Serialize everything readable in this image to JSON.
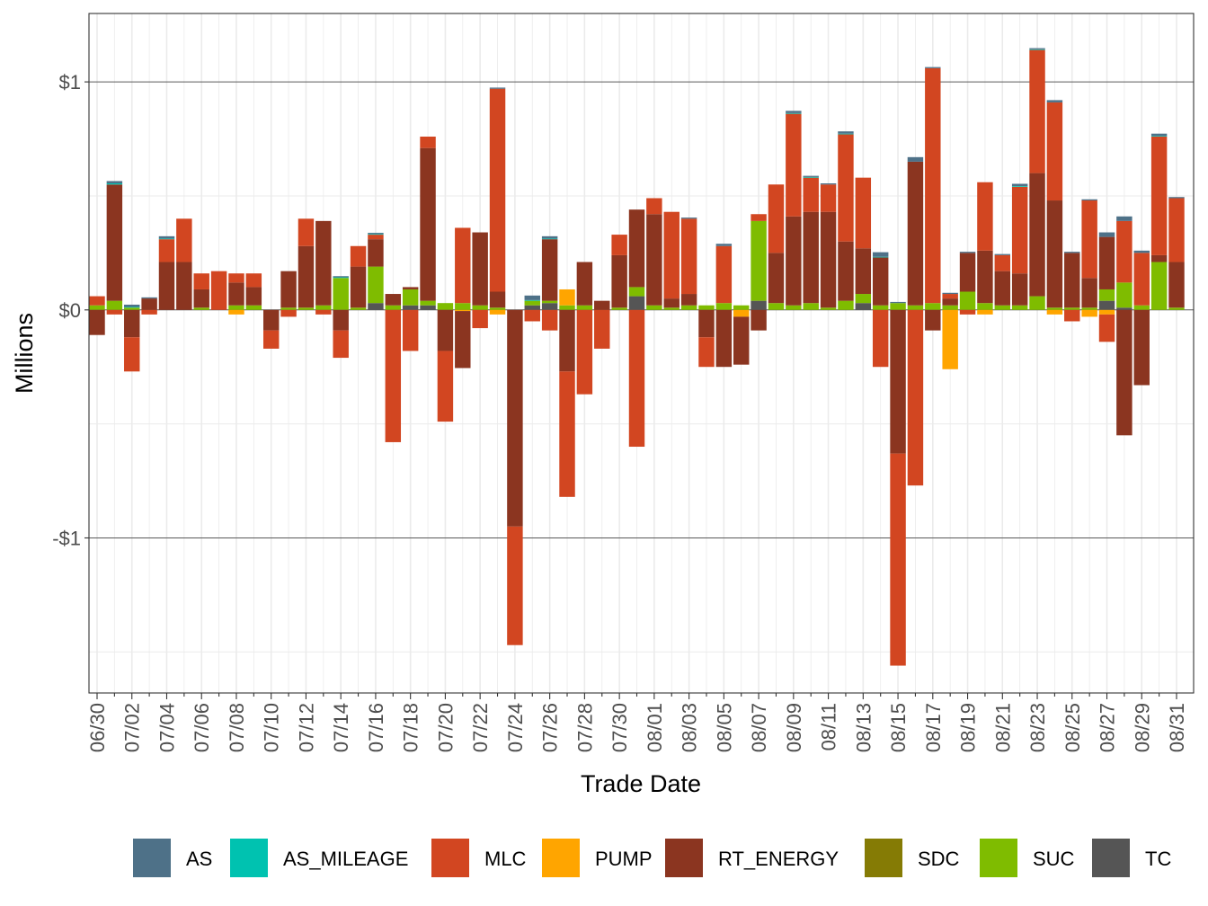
{
  "chart_data": {
    "type": "bar",
    "stacked": true,
    "xlabel": "Trade Date",
    "ylabel": "Millions",
    "ylim": [
      -1.68,
      1.3
    ],
    "yticks": [
      {
        "value": -1,
        "label": "-$1"
      },
      {
        "value": 0,
        "label": "$0"
      },
      {
        "value": 1,
        "label": "$1"
      }
    ],
    "grid": true,
    "legend_position": "bottom",
    "categories": [
      "06/30",
      "07/01",
      "07/02",
      "07/03",
      "07/04",
      "07/05",
      "07/06",
      "07/07",
      "07/08",
      "07/09",
      "07/10",
      "07/11",
      "07/12",
      "07/13",
      "07/14",
      "07/15",
      "07/16",
      "07/17",
      "07/18",
      "07/19",
      "07/20",
      "07/21",
      "07/22",
      "07/23",
      "07/24",
      "07/25",
      "07/26",
      "07/27",
      "07/28",
      "07/29",
      "07/30",
      "07/31",
      "08/01",
      "08/02",
      "08/03",
      "08/04",
      "08/05",
      "08/06",
      "08/07",
      "08/08",
      "08/09",
      "08/10",
      "08/11",
      "08/12",
      "08/13",
      "08/14",
      "08/15",
      "08/16",
      "08/17",
      "08/18",
      "08/19",
      "08/20",
      "08/21",
      "08/22",
      "08/23",
      "08/24",
      "08/25",
      "08/26",
      "08/27",
      "08/28",
      "08/29",
      "08/30",
      "08/31"
    ],
    "x_tick_labels": [
      "06/30",
      "07/02",
      "07/04",
      "07/06",
      "07/08",
      "07/10",
      "07/12",
      "07/14",
      "07/16",
      "07/18",
      "07/20",
      "07/22",
      "07/24",
      "07/26",
      "07/28",
      "07/30",
      "08/01",
      "08/03",
      "08/05",
      "08/07",
      "08/09",
      "08/11",
      "08/13",
      "08/15",
      "08/17",
      "08/19",
      "08/21",
      "08/23",
      "08/25",
      "08/27",
      "08/29",
      "08/31"
    ],
    "series": [
      {
        "name": "TC",
        "color": "#555555",
        "values": [
          0,
          0,
          0,
          0,
          0,
          0,
          0,
          0,
          0,
          0,
          0,
          0,
          0,
          0,
          0,
          0,
          0.03,
          0,
          0.02,
          0.02,
          0,
          0,
          0,
          0,
          0,
          0.02,
          0.03,
          0,
          0,
          0,
          0,
          0.06,
          0,
          0,
          0,
          0,
          0,
          0,
          0.04,
          0,
          0,
          0,
          0,
          0,
          0.03,
          0,
          0,
          0,
          0,
          0,
          0,
          0,
          0,
          0,
          0,
          0,
          0,
          0,
          0.04,
          0.01,
          0,
          0,
          0
        ]
      },
      {
        "name": "SDC",
        "color": "#857B05",
        "values": [
          0,
          0,
          0,
          0,
          0,
          0,
          0,
          0,
          0,
          0,
          0,
          0,
          0,
          0,
          0,
          0,
          0,
          0,
          0,
          0,
          0,
          0,
          0,
          0,
          0,
          0,
          0,
          0,
          0,
          0,
          0,
          0,
          0,
          0,
          0,
          0,
          0,
          0,
          0,
          0,
          0,
          0,
          0,
          0,
          0,
          0,
          0,
          0,
          0,
          0,
          0,
          0,
          0,
          0,
          0,
          0,
          0,
          0,
          0,
          0,
          0,
          0,
          0
        ]
      },
      {
        "name": "SUC",
        "color": "#7FBC00",
        "values": [
          0.02,
          0.04,
          0.01,
          0,
          0,
          0,
          0.01,
          0,
          0.02,
          0.02,
          0,
          0.01,
          0.01,
          0.02,
          0.14,
          0.01,
          0.16,
          0.02,
          0.07,
          0.02,
          0.03,
          0.03,
          0.02,
          0.01,
          0,
          0.02,
          0.01,
          0.02,
          0.02,
          0,
          0.01,
          0.04,
          0.02,
          0.01,
          0.02,
          0.02,
          0.03,
          0.02,
          0.35,
          0.03,
          0.02,
          0.03,
          0.01,
          0.04,
          0.04,
          0.02,
          0.03,
          0.02,
          0.03,
          0.02,
          0.08,
          0.03,
          0.02,
          0.02,
          0.06,
          0.01,
          0.01,
          0.01,
          0.05,
          0.11,
          0.02,
          0.21,
          0.01
        ]
      },
      {
        "name": "PUMP",
        "color": "#FFA500",
        "values": [
          0,
          0,
          0,
          0,
          0,
          0,
          0,
          0,
          -0.02,
          0,
          0,
          0,
          0,
          0,
          0,
          0,
          0,
          0,
          0,
          0,
          0,
          -0.005,
          0,
          -0.02,
          0,
          0,
          0,
          0.07,
          0,
          0,
          0,
          0,
          0,
          0,
          0,
          0,
          0,
          -0.03,
          0,
          0,
          0,
          0,
          0,
          0,
          0,
          0,
          0,
          0,
          0,
          -0.26,
          0,
          -0.02,
          0,
          0,
          0,
          -0.02,
          0,
          -0.03,
          -0.02,
          0,
          0,
          0,
          0
        ]
      },
      {
        "name": "RT_ENERGY",
        "color": "#8B3520",
        "values": [
          -0.11,
          0.51,
          -0.12,
          0.05,
          0.21,
          0.21,
          0.08,
          0,
          0.1,
          0.08,
          -0.09,
          0.16,
          0.27,
          0.37,
          -0.09,
          0.18,
          0.12,
          0.05,
          0.01,
          0.67,
          -0.18,
          -0.25,
          0.32,
          0.07,
          -0.95,
          0,
          0.27,
          -0.27,
          0.19,
          0.04,
          0.23,
          0.34,
          0.4,
          0.04,
          0.05,
          -0.12,
          -0.25,
          -0.21,
          -0.09,
          0.22,
          0.39,
          0.4,
          0.42,
          0.26,
          0.2,
          0.21,
          -0.63,
          0.63,
          -0.09,
          0.03,
          0.17,
          0.23,
          0.15,
          0.14,
          0.54,
          0.47,
          0.24,
          0.13,
          0.23,
          -0.55,
          -0.33,
          0.03,
          0.2
        ]
      },
      {
        "name": "MLC",
        "color": "#D24621",
        "values": [
          0.04,
          -0.02,
          -0.15,
          -0.02,
          0.1,
          0.19,
          0.07,
          0.17,
          0.04,
          0.06,
          -0.08,
          -0.03,
          0.12,
          -0.02,
          -0.12,
          0.09,
          0.02,
          -0.58,
          -0.18,
          0.05,
          -0.31,
          0.33,
          -0.08,
          0.89,
          -0.52,
          -0.05,
          -0.09,
          -0.55,
          -0.37,
          -0.17,
          0.09,
          -0.6,
          0.07,
          0.38,
          0.33,
          -0.13,
          0.25,
          0,
          0.03,
          0.3,
          0.45,
          0.15,
          0.12,
          0.47,
          0.31,
          -0.25,
          -0.93,
          -0.77,
          1.03,
          0.02,
          -0.02,
          0.3,
          0.07,
          0.38,
          0.54,
          0.43,
          -0.05,
          0.34,
          -0.12,
          0.27,
          0.23,
          0.52,
          0.28
        ]
      },
      {
        "name": "AS_MILEAGE",
        "color": "#00C2B0",
        "values": [
          0,
          0.005,
          0.003,
          0,
          0.003,
          0,
          0,
          0,
          0,
          0,
          0,
          0,
          0,
          0,
          0.003,
          0,
          0.003,
          0,
          0,
          0,
          0,
          0,
          0,
          0,
          0,
          0.003,
          0.003,
          0,
          0,
          0,
          0,
          0,
          0,
          0,
          0,
          0,
          0,
          0,
          0,
          0,
          0.003,
          0.003,
          0,
          0.003,
          0,
          0.003,
          0,
          0,
          0,
          0,
          0,
          0,
          0,
          0.003,
          0.003,
          0,
          0,
          0,
          0,
          0,
          0,
          0.003,
          0
        ]
      },
      {
        "name": "AS",
        "color": "#4E7188",
        "values": [
          0,
          0.01,
          0.01,
          0.005,
          0.01,
          0,
          0,
          0,
          0,
          0,
          0,
          0,
          0,
          0,
          0.005,
          0,
          0.005,
          0,
          0,
          0,
          0,
          0,
          0,
          0.005,
          0,
          0.02,
          0.01,
          0,
          0,
          0,
          0,
          0,
          0,
          0,
          0.005,
          0,
          0.01,
          0,
          0,
          0,
          0.01,
          0.005,
          0.005,
          0.01,
          0,
          0.02,
          0.005,
          0.02,
          0.005,
          0.005,
          0.005,
          0,
          0.005,
          0.01,
          0.005,
          0.01,
          0.005,
          0.005,
          0.02,
          0.02,
          0.01,
          0.01,
          0.005
        ]
      }
    ]
  },
  "legend": [
    {
      "label": "AS",
      "color": "#4E7188"
    },
    {
      "label": "AS_MILEAGE",
      "color": "#00C2B0"
    },
    {
      "label": "MLC",
      "color": "#D24621"
    },
    {
      "label": "PUMP",
      "color": "#FFA500"
    },
    {
      "label": "RT_ENERGY",
      "color": "#8B3520"
    },
    {
      "label": "SDC",
      "color": "#857B05"
    },
    {
      "label": "SUC",
      "color": "#7FBC00"
    },
    {
      "label": "TC",
      "color": "#555555"
    }
  ]
}
